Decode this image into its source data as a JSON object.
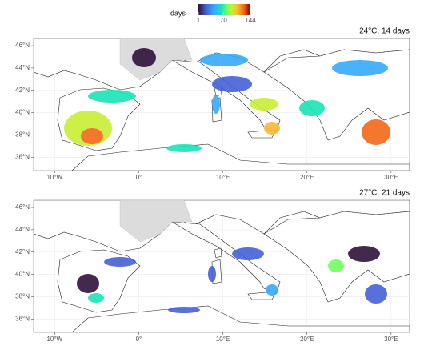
{
  "legend": {
    "title": "days",
    "lim": [
      1,
      144
    ],
    "ticks": [
      1,
      70,
      144
    ]
  },
  "panels": [
    {
      "title": "24°C, 14 days",
      "xlim": [
        -12.5,
        32.2
      ],
      "ylim": [
        34.8,
        46.65
      ],
      "xticks": [
        {
          "value": -10,
          "label": "10°W"
        },
        {
          "value": 0,
          "label": "0°"
        },
        {
          "value": 10,
          "label": "10°E"
        },
        {
          "value": 20,
          "label": "20°E"
        },
        {
          "value": 30,
          "label": "30°E"
        }
      ],
      "yticks": [
        {
          "value": 36,
          "label": "36°N"
        },
        {
          "value": 38,
          "label": "38°N"
        },
        {
          "value": 40,
          "label": "40°N"
        },
        {
          "value": 42,
          "label": "42°N"
        },
        {
          "value": 44,
          "label": "44°N"
        },
        {
          "value": 46,
          "label": "46°N"
        }
      ]
    },
    {
      "title": "27°C, 21 days",
      "xlim": [
        -12.5,
        32.2
      ],
      "ylim": [
        34.8,
        46.65
      ],
      "xticks": [
        {
          "value": -10,
          "label": "10°W"
        },
        {
          "value": 0,
          "label": "0°"
        },
        {
          "value": 10,
          "label": "10°E"
        },
        {
          "value": 20,
          "label": "20°E"
        },
        {
          "value": 30,
          "label": "30°E"
        }
      ],
      "yticks": [
        {
          "value": 36,
          "label": "36°N"
        },
        {
          "value": 38,
          "label": "38°N"
        },
        {
          "value": 40,
          "label": "40°N"
        },
        {
          "value": 42,
          "label": "42°N"
        },
        {
          "value": 44,
          "label": "44°N"
        },
        {
          "value": 46,
          "label": "46°N"
        }
      ]
    }
  ]
}
